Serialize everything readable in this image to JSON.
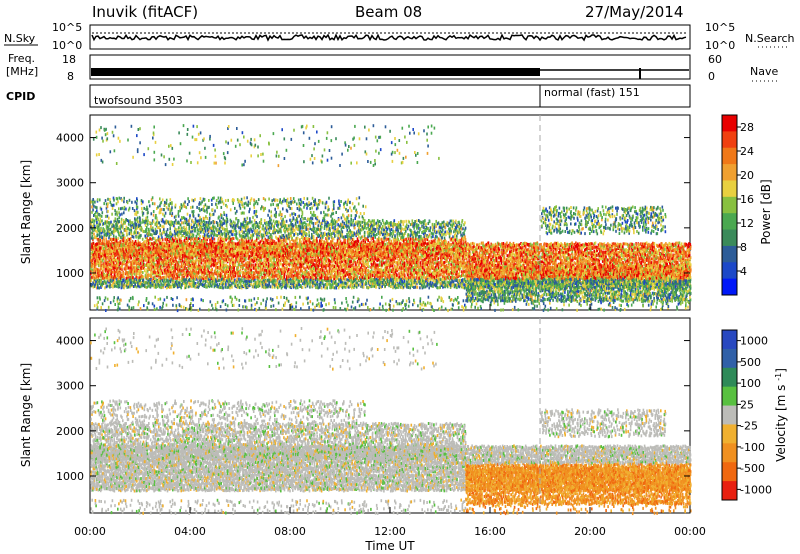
{
  "header": {
    "station": "Inuvik (fitACF)",
    "beam": "Beam 08",
    "date": "27/May/2014"
  },
  "status_panels": {
    "nsky_label": "N.Sky",
    "nsearch_label": "N.Search",
    "noise_ticks_left": [
      "10^5",
      "10^0"
    ],
    "noise_ticks_right": [
      "10^5",
      "10^0"
    ],
    "freq_label_line1": "Freq.",
    "freq_label_line2": "[MHz]",
    "freq_ticks": [
      "18",
      "8"
    ],
    "nave_label": "Nave",
    "nave_ticks": [
      "60",
      "0"
    ],
    "cpid_label": "CPID",
    "cpid_modes": [
      {
        "name": "twofsound 3503",
        "start_hour": 0
      },
      {
        "name": "normal (fast) 151",
        "start_hour": 18
      }
    ]
  },
  "chart_data": [
    {
      "type": "heatmap",
      "title": "Power",
      "ylabel": "Slant Range [km]",
      "xlabel": "Time UT",
      "x_ticks": [
        "00:00",
        "04:00",
        "08:00",
        "12:00",
        "16:00",
        "20:00",
        "00:00"
      ],
      "x_range_hours": [
        0,
        24
      ],
      "y_ticks": [
        1000,
        2000,
        3000,
        4000
      ],
      "y_range_km": [
        180,
        4500
      ],
      "colorbar": {
        "label": "Power [dB]",
        "ticks": [
          4,
          8,
          12,
          16,
          20,
          24,
          28
        ],
        "colors": [
          "#0018f8",
          "#1c48c8",
          "#2c5c98",
          "#3a8a5a",
          "#4aa850",
          "#88c040",
          "#e8d040",
          "#f0a030",
          "#f07818",
          "#f04010",
          "#e80000"
        ]
      },
      "mode_change_hour": 18
    },
    {
      "type": "heatmap",
      "title": "Velocity",
      "ylabel": "Slant Range [km]",
      "xlabel": "Time UT",
      "x_ticks": [
        "00:00",
        "04:00",
        "08:00",
        "12:00",
        "16:00",
        "20:00",
        "00:00"
      ],
      "x_range_hours": [
        0,
        24
      ],
      "y_ticks": [
        1000,
        2000,
        3000,
        4000
      ],
      "y_range_km": [
        180,
        4500
      ],
      "colorbar": {
        "label": "Velocity [m s^-1]",
        "ticks": [
          "1000",
          "500",
          "100",
          "25",
          "-25",
          "-100",
          "-500",
          "-1000"
        ],
        "colors": [
          "#2848c0",
          "#3060a8",
          "#2e8a58",
          "#58c040",
          "#bcbcb8",
          "#f0b030",
          "#f09020",
          "#f06810",
          "#e82010"
        ]
      },
      "mode_change_hour": 18
    }
  ]
}
